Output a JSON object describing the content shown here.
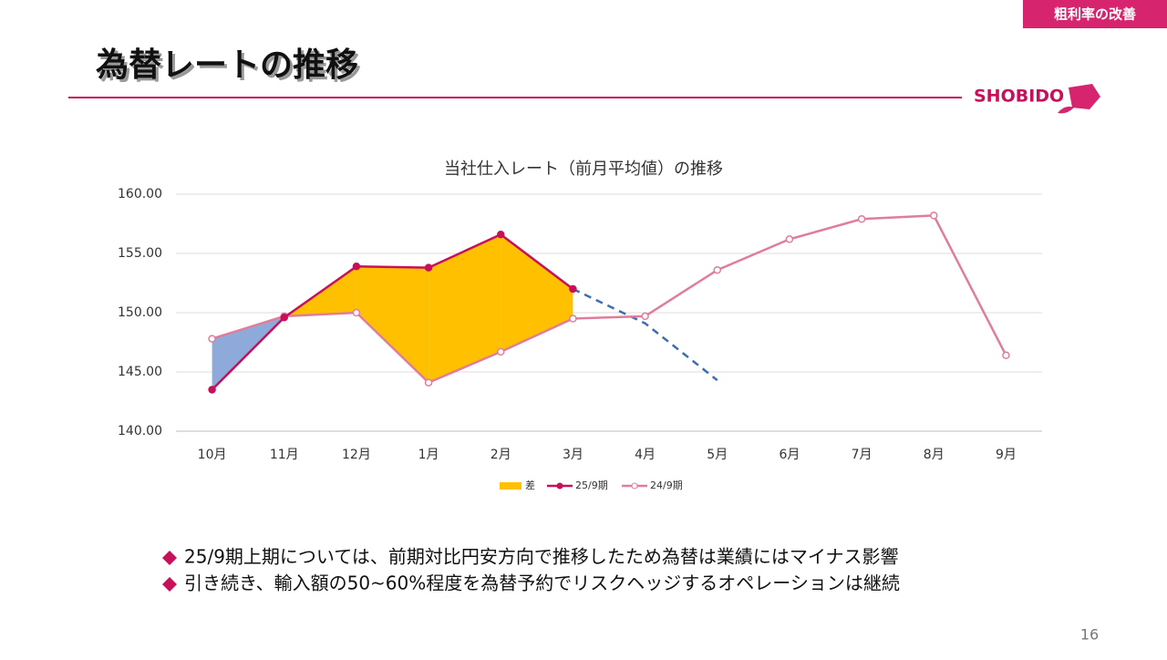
{
  "header": {
    "tag": "粗利率の改善",
    "title": "為替レートの推移",
    "logo": "SHOBIDO"
  },
  "chart_data": {
    "type": "line",
    "title": "当社仕入レート（前月平均値）の推移",
    "categories": [
      "10月",
      "11月",
      "12月",
      "1月",
      "2月",
      "3月",
      "4月",
      "5月",
      "6月",
      "7月",
      "8月",
      "9月"
    ],
    "series": [
      {
        "name": "25/9期",
        "color": "#c8105a",
        "values": [
          143.5,
          149.6,
          153.9,
          153.8,
          156.6,
          152.0,
          null,
          null,
          null,
          null,
          null,
          null
        ]
      },
      {
        "name": "24/9期",
        "color": "#e07d9a",
        "values": [
          147.8,
          149.7,
          150.0,
          144.1,
          146.7,
          149.5,
          149.7,
          153.6,
          156.2,
          157.9,
          158.2,
          146.4
        ]
      }
    ],
    "forecast": {
      "color": "#3f6db3",
      "values": [
        null,
        null,
        null,
        null,
        null,
        152.0,
        149.1,
        144.3,
        null,
        null,
        null,
        null
      ]
    },
    "difference": {
      "name": "差",
      "color": "#ffc000",
      "negative_color": "#8eaadb"
    },
    "ylim": [
      140,
      160
    ],
    "yticks": [
      {
        "value": 140,
        "label": "140.00"
      },
      {
        "value": 145,
        "label": "145.00"
      },
      {
        "value": 150,
        "label": "150.00"
      },
      {
        "value": 155,
        "label": "155.00"
      },
      {
        "value": 160,
        "label": "160.00"
      }
    ],
    "grid": true,
    "legend": "bottom"
  },
  "bullets": [
    "25/9期上期については、前期対比円安方向で推移したため為替は業績にはマイナス影響",
    "引き続き、輸入額の50~60%程度を為替予約でリスクヘッジするオペレーションは継続"
  ],
  "page_number": "16"
}
